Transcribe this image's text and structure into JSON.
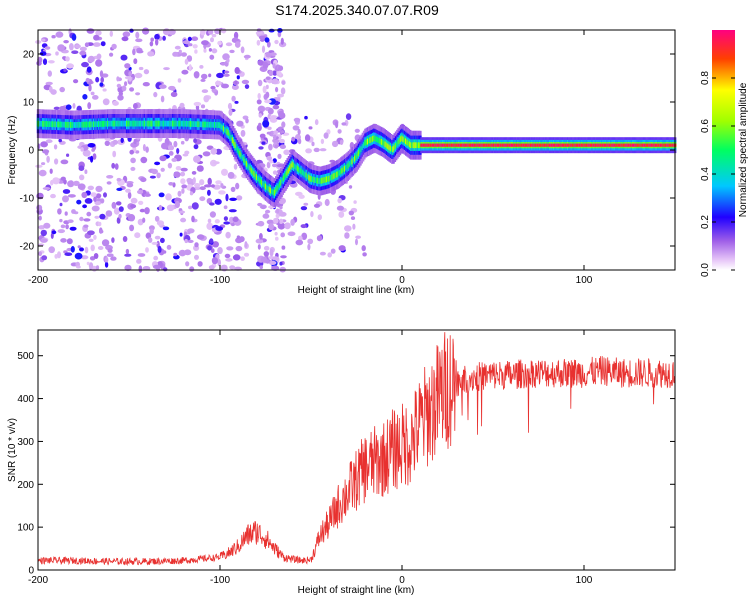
{
  "title": "S174.2025.340.07.07.R09",
  "chart_data": [
    {
      "type": "heatmap",
      "title": "S174.2025.340.07.07.R09",
      "xlabel": "Height of straight line (km)",
      "ylabel": "Frequency (Hz)",
      "xlim": [
        -200,
        150
      ],
      "ylim": [
        -25,
        25
      ],
      "xticks": [
        -200,
        -100,
        0,
        100
      ],
      "yticks": [
        -20,
        -10,
        0,
        10,
        20
      ],
      "colorbar": {
        "label": "Normalized spectral amplitude",
        "range": [
          0.0,
          1.0
        ],
        "ticks": [
          "0.0",
          "0.2",
          "0.4",
          "0.6",
          "0.8"
        ]
      },
      "ridge": {
        "x": [
          -200,
          -180,
          -160,
          -140,
          -120,
          -100,
          -95,
          -90,
          -85,
          -80,
          -75,
          -70,
          -60,
          -50,
          -45,
          -40,
          -35,
          -30,
          -25,
          -20,
          -15,
          -10,
          -5,
          0,
          5,
          10,
          20,
          50,
          100,
          150
        ],
        "y": [
          5.5,
          5.2,
          5.5,
          5.5,
          5.5,
          5.2,
          3.5,
          0,
          -3,
          -5.5,
          -7.5,
          -9,
          -3,
          -6,
          -6.5,
          -6,
          -5,
          -3.5,
          -1.5,
          1.5,
          2.5,
          1.5,
          0,
          2.5,
          1,
          1,
          1,
          1,
          1,
          1
        ]
      }
    },
    {
      "type": "line",
      "xlabel": "Height of straight line (km)",
      "ylabel": "SNR (10 * v/v)",
      "xlim": [
        -200,
        150
      ],
      "ylim": [
        0,
        560
      ],
      "xticks": [
        -200,
        -100,
        0,
        100
      ],
      "yticks": [
        0,
        100,
        200,
        300,
        400,
        500
      ],
      "series": [
        {
          "name": "SNR",
          "color": "#e8312f",
          "x": [
            -200,
            -180,
            -160,
            -140,
            -120,
            -100,
            -95,
            -90,
            -85,
            -80,
            -75,
            -70,
            -65,
            -60,
            -55,
            -50,
            -45,
            -40,
            -35,
            -30,
            -25,
            -20,
            -15,
            -10,
            -5,
            0,
            5,
            10,
            15,
            20,
            25,
            30,
            40,
            50,
            60,
            70,
            80,
            90,
            100,
            110,
            120,
            130,
            140,
            150
          ],
          "y": [
            22,
            22,
            20,
            20,
            22,
            30,
            40,
            55,
            80,
            90,
            75,
            50,
            30,
            25,
            22,
            24,
            80,
            110,
            150,
            180,
            210,
            240,
            250,
            260,
            280,
            290,
            300,
            340,
            370,
            400,
            430,
            440,
            450,
            455,
            455,
            460,
            460,
            460,
            460,
            465,
            460,
            460,
            460,
            460
          ]
        }
      ]
    }
  ]
}
